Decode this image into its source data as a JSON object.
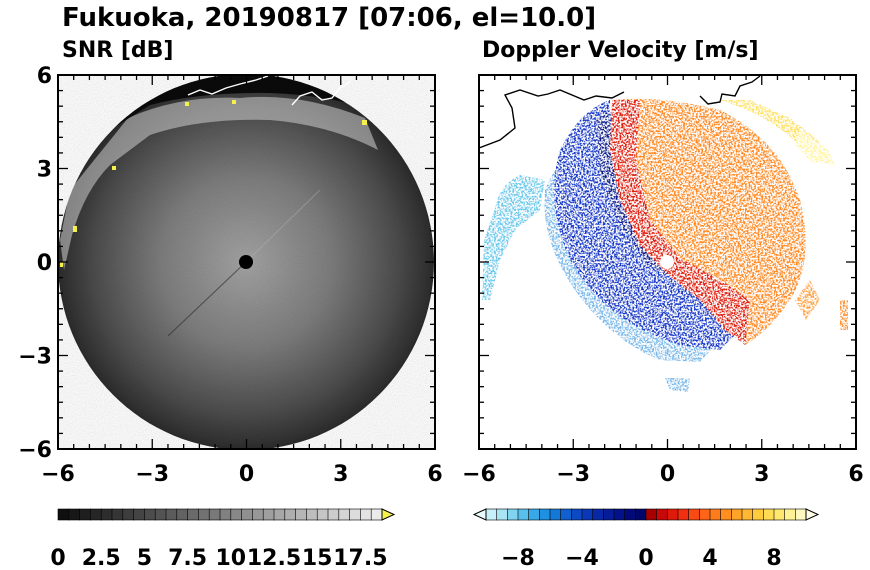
{
  "title": "Fukuoka, 20190817 [07:06, el=10.0]",
  "chart_data": [
    {
      "type": "heatmap",
      "panel_label": "SNR [dB]",
      "xlim": [
        -6,
        6
      ],
      "ylim": [
        -6,
        6
      ],
      "x_ticks": [
        -6,
        -3,
        0,
        3,
        6
      ],
      "y_ticks": [
        6,
        3,
        0,
        -3,
        -6
      ],
      "x_tick_labels": [
        "−6",
        "−3",
        "0",
        "3",
        "6"
      ],
      "y_tick_labels": [
        "6",
        "3",
        "0",
        "−3",
        "−6"
      ],
      "radar_center": [
        0,
        0
      ],
      "radar_range": 6,
      "colorbar": {
        "min": 0,
        "max": 18.75,
        "step": 0.625,
        "extend": "max",
        "tick_values": [
          0,
          2.5,
          5,
          7.5,
          10,
          12.5,
          15,
          17.5
        ],
        "tick_labels": [
          "0",
          "2.5",
          "5",
          "7.5",
          "10",
          "12.5",
          "15",
          "17.5"
        ]
      }
    },
    {
      "type": "heatmap",
      "panel_label": "Doppler Velocity [m/s]",
      "xlim": [
        -6,
        6
      ],
      "ylim": [
        -6,
        6
      ],
      "x_ticks": [
        -6,
        -3,
        0,
        3,
        6
      ],
      "x_tick_labels": [
        "−6",
        "−3",
        "0",
        "3",
        "6"
      ],
      "radar_center": [
        0,
        0
      ],
      "colorbar": {
        "min": -10,
        "max": 10,
        "extend": "both",
        "tick_values": [
          -8,
          -4,
          0,
          4,
          8
        ],
        "tick_labels": [
          "−8",
          "−4",
          "0",
          "4",
          "8"
        ]
      }
    }
  ],
  "colors": {
    "snr_background": "#3a3a3a",
    "snr_center": "#9a9a9a",
    "clutter_yellow": "#f5f04a",
    "vel_neg_dark": "#0a1a9a",
    "vel_neg_light": "#c8f0f8",
    "vel_pos_dark": "#c80a0a",
    "vel_pos_light": "#fff8c0",
    "coastline": "#000000"
  }
}
